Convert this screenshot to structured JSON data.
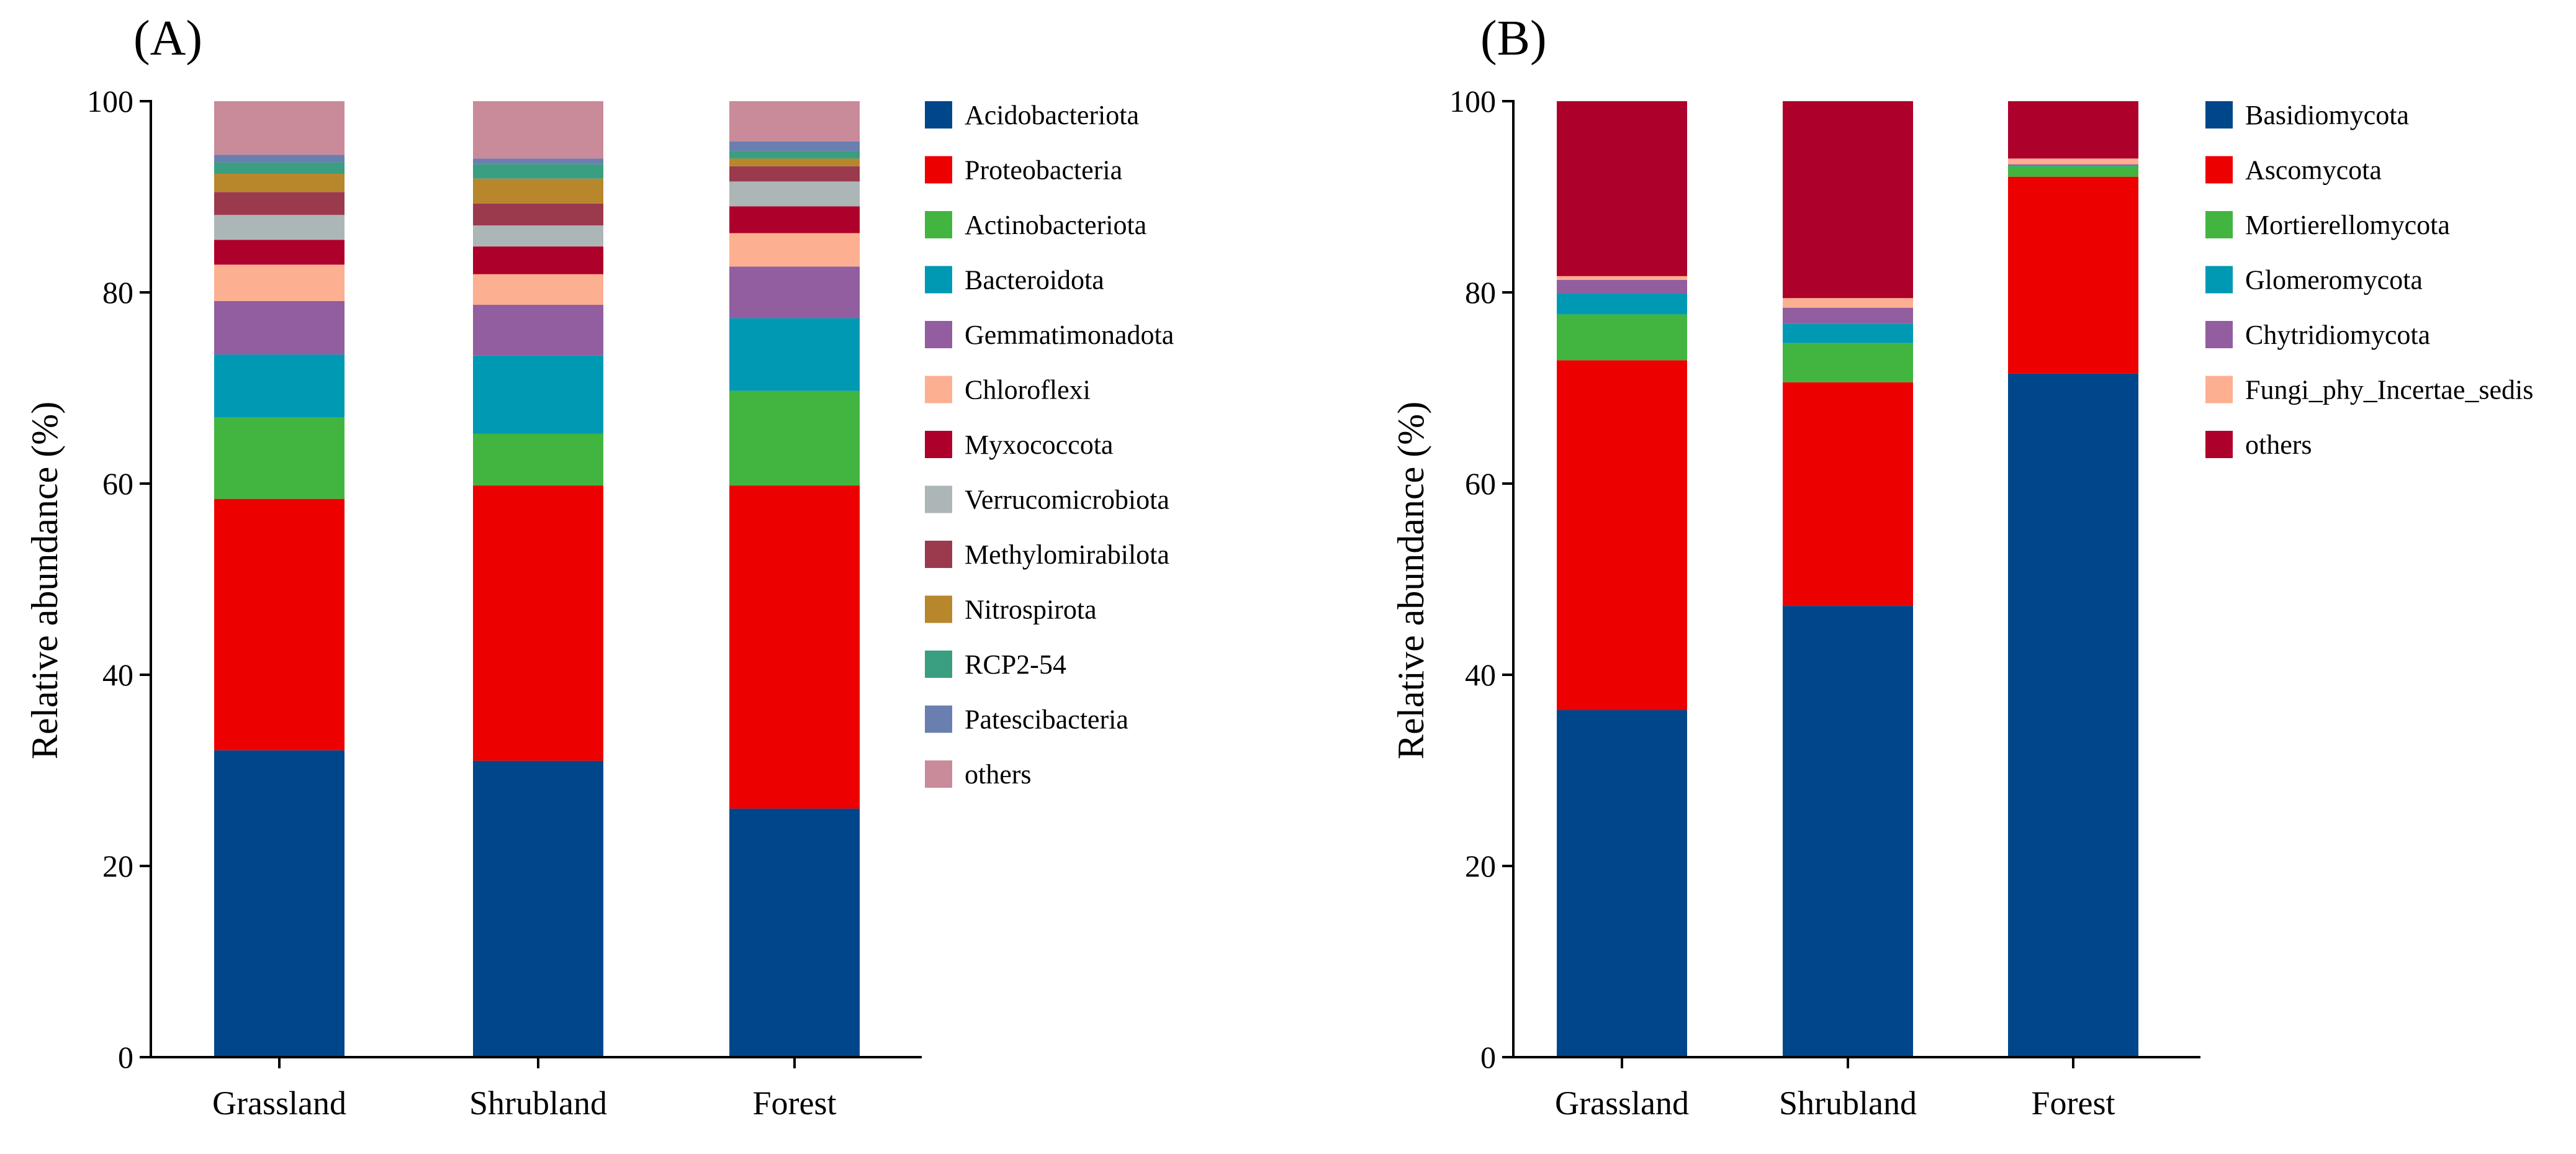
{
  "chart_data": [
    {
      "panel_label": "(A)",
      "type": "bar",
      "stacked": true,
      "xlabel": "",
      "ylabel": "Relative abundance (%)",
      "ylim": [
        0,
        100
      ],
      "yticks": [
        "0",
        "20",
        "40",
        "60",
        "80",
        "100"
      ],
      "grid": false,
      "legend_position": "right",
      "categories": [
        "Grassland",
        "Shrubland",
        "Forest"
      ],
      "series": [
        {
          "name": "Acidobacteriota",
          "color": "#00468B",
          "values": [
            32.1,
            31.0,
            26.0
          ]
        },
        {
          "name": "Proteobacteria",
          "color": "#ED0000",
          "values": [
            26.3,
            28.8,
            33.8
          ]
        },
        {
          "name": "Actinobacteriota",
          "color": "#42B540",
          "values": [
            8.5,
            5.4,
            9.9
          ]
        },
        {
          "name": "Bacteroidota",
          "color": "#0099B4",
          "values": [
            6.6,
            8.2,
            7.6
          ]
        },
        {
          "name": "Gemmatimonadota",
          "color": "#925E9F",
          "values": [
            5.6,
            5.3,
            5.4
          ]
        },
        {
          "name": "Chloroflexi",
          "color": "#FDAF91",
          "values": [
            3.8,
            3.2,
            3.5
          ]
        },
        {
          "name": "Myxococcota",
          "color": "#AD002A",
          "values": [
            2.6,
            2.9,
            2.8
          ]
        },
        {
          "name": "Verrucomicrobiota",
          "color": "#ADB6B6",
          "values": [
            2.6,
            2.2,
            2.6
          ]
        },
        {
          "name": "Methylomirabilota",
          "color": "#9B3A4D",
          "values": [
            2.4,
            2.3,
            1.6
          ]
        },
        {
          "name": "Nitrospirota",
          "color": "#B8862B",
          "values": [
            1.9,
            2.6,
            0.8
          ]
        },
        {
          "name": "RCP2-54",
          "color": "#3A9E80",
          "values": [
            1.2,
            1.5,
            0.8
          ]
        },
        {
          "name": "Patescibacteria",
          "color": "#6A7FB0",
          "values": [
            0.8,
            0.6,
            1.0
          ]
        },
        {
          "name": "others",
          "color": "#C98A99",
          "values": [
            5.6,
            6.0,
            4.2
          ]
        }
      ]
    },
    {
      "panel_label": "(B)",
      "type": "bar",
      "stacked": true,
      "xlabel": "",
      "ylabel": "Relative abundance (%)",
      "ylim": [
        0,
        100
      ],
      "yticks": [
        "0",
        "20",
        "40",
        "60",
        "80",
        "100"
      ],
      "grid": false,
      "legend_position": "right",
      "categories": [
        "Grassland",
        "Shrubland",
        "Forest"
      ],
      "series": [
        {
          "name": "Basidiomycota",
          "color": "#00468B",
          "values": [
            36.3,
            47.2,
            71.5
          ]
        },
        {
          "name": "Ascomycota",
          "color": "#ED0000",
          "values": [
            36.6,
            23.4,
            20.6
          ]
        },
        {
          "name": "Mortierellomycota",
          "color": "#42B540",
          "values": [
            4.8,
            4.1,
            1.1
          ]
        },
        {
          "name": "Glomeromycota",
          "color": "#0099B4",
          "values": [
            2.2,
            2.0,
            0.1
          ]
        },
        {
          "name": "Chytridiomycota",
          "color": "#925E9F",
          "values": [
            1.4,
            1.7,
            0.1
          ]
        },
        {
          "name": "Fungi_phy_Incertae_sedis",
          "color": "#FDAF91",
          "values": [
            0.4,
            1.0,
            0.6
          ]
        },
        {
          "name": "others",
          "color": "#AD002A",
          "values": [
            18.3,
            20.6,
            6.0
          ]
        }
      ]
    }
  ]
}
